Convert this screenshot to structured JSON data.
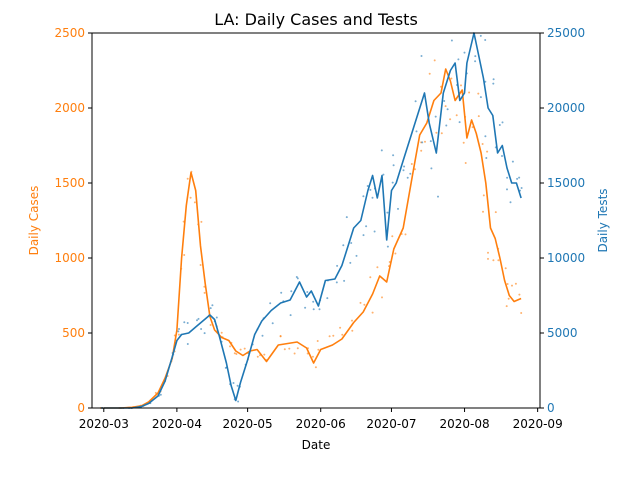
{
  "chart_data": {
    "type": "line",
    "title": "LA: Daily Cases and Tests",
    "xlabel": "Date",
    "ylabel_left": "Daily Cases",
    "ylabel_right": "Daily Tests",
    "x_ticks": [
      "2020-03",
      "2020-04",
      "2020-05",
      "2020-06",
      "2020-07",
      "2020-08",
      "2020-09"
    ],
    "ylim_left": [
      0,
      2500
    ],
    "y_ticks_left": [
      0,
      500,
      1000,
      1500,
      2000,
      2500
    ],
    "ylim_right": [
      0,
      25000
    ],
    "y_ticks_right": [
      0,
      5000,
      10000,
      15000,
      20000,
      25000
    ],
    "grid": false,
    "colors": {
      "cases": "#ff7f0e",
      "tests": "#1f77b4"
    },
    "series": [
      {
        "key": "cases",
        "axis": "left",
        "x": [
          "2020-03-01",
          "2020-03-08",
          "2020-03-13",
          "2020-03-17",
          "2020-03-20",
          "2020-03-24",
          "2020-03-27",
          "2020-03-30",
          "2020-04-01",
          "2020-04-03",
          "2020-04-05",
          "2020-04-07",
          "2020-04-09",
          "2020-04-11",
          "2020-04-13",
          "2020-04-15",
          "2020-04-17",
          "2020-04-20",
          "2020-04-23",
          "2020-04-26",
          "2020-04-29",
          "2020-05-02",
          "2020-05-05",
          "2020-05-09",
          "2020-05-14",
          "2020-05-18",
          "2020-05-22",
          "2020-05-26",
          "2020-05-29",
          "2020-06-01",
          "2020-06-06",
          "2020-06-10",
          "2020-06-15",
          "2020-06-19",
          "2020-06-23",
          "2020-06-26",
          "2020-06-29",
          "2020-07-02",
          "2020-07-06",
          "2020-07-10",
          "2020-07-13",
          "2020-07-16",
          "2020-07-19",
          "2020-07-22",
          "2020-07-24",
          "2020-07-26",
          "2020-07-28",
          "2020-07-31",
          "2020-08-02",
          "2020-08-04",
          "2020-08-06",
          "2020-08-08",
          "2020-08-10",
          "2020-08-12",
          "2020-08-14",
          "2020-08-16",
          "2020-08-18",
          "2020-08-20",
          "2020-08-22",
          "2020-08-25"
        ],
        "values": [
          0,
          0,
          5,
          15,
          40,
          100,
          200,
          330,
          520,
          1000,
          1350,
          1570,
          1450,
          1080,
          830,
          610,
          520,
          470,
          450,
          380,
          350,
          380,
          390,
          310,
          420,
          430,
          440,
          400,
          300,
          390,
          420,
          460,
          570,
          640,
          760,
          880,
          840,
          1060,
          1200,
          1560,
          1820,
          1900,
          2050,
          2100,
          2260,
          2180,
          2050,
          2120,
          1800,
          1920,
          1830,
          1700,
          1500,
          1200,
          1130,
          1000,
          850,
          750,
          710,
          730
        ]
      },
      {
        "key": "tests",
        "axis": "right",
        "x": [
          "2020-03-01",
          "2020-03-08",
          "2020-03-13",
          "2020-03-17",
          "2020-03-20",
          "2020-03-24",
          "2020-03-27",
          "2020-03-30",
          "2020-04-01",
          "2020-04-03",
          "2020-04-06",
          "2020-04-09",
          "2020-04-12",
          "2020-04-15",
          "2020-04-17",
          "2020-04-19",
          "2020-04-22",
          "2020-04-24",
          "2020-04-26",
          "2020-04-28",
          "2020-05-01",
          "2020-05-04",
          "2020-05-07",
          "2020-05-11",
          "2020-05-15",
          "2020-05-19",
          "2020-05-23",
          "2020-05-26",
          "2020-05-28",
          "2020-05-31",
          "2020-06-03",
          "2020-06-07",
          "2020-06-10",
          "2020-06-13",
          "2020-06-15",
          "2020-06-18",
          "2020-06-21",
          "2020-06-23",
          "2020-06-25",
          "2020-06-27",
          "2020-06-29",
          "2020-07-01",
          "2020-07-03",
          "2020-07-06",
          "2020-07-09",
          "2020-07-12",
          "2020-07-15",
          "2020-07-17",
          "2020-07-20",
          "2020-07-23",
          "2020-07-26",
          "2020-07-28",
          "2020-07-30",
          "2020-08-01",
          "2020-08-02",
          "2020-08-05",
          "2020-08-07",
          "2020-08-09",
          "2020-08-11",
          "2020-08-13",
          "2020-08-15",
          "2020-08-17",
          "2020-08-19",
          "2020-08-21",
          "2020-08-23",
          "2020-08-25"
        ],
        "values": [
          0,
          0,
          0,
          100,
          300,
          800,
          1800,
          3400,
          4500,
          4900,
          5000,
          5400,
          5800,
          6200,
          5900,
          4800,
          3000,
          1500,
          500,
          1700,
          3200,
          4900,
          5800,
          6500,
          7000,
          7200,
          8400,
          7400,
          7800,
          6800,
          8500,
          8600,
          9500,
          11000,
          12000,
          12500,
          14500,
          15500,
          14000,
          15500,
          11200,
          14500,
          15000,
          16500,
          18000,
          19500,
          21000,
          19000,
          17000,
          21000,
          22500,
          23000,
          20500,
          21000,
          23000,
          25000,
          23500,
          22000,
          20000,
          19500,
          17000,
          17500,
          16000,
          15000,
          15000,
          14000
        ]
      }
    ]
  }
}
